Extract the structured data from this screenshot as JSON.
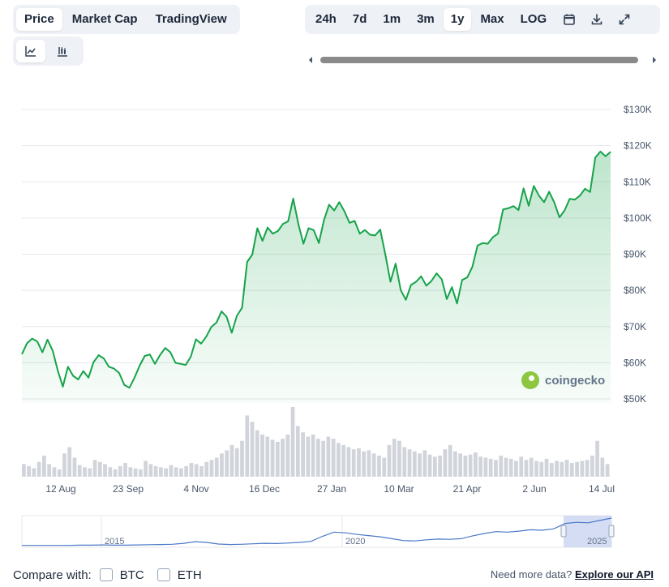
{
  "header": {
    "tabs": [
      {
        "label": "Price",
        "active": true
      },
      {
        "label": "Market Cap",
        "active": false
      },
      {
        "label": "TradingView",
        "active": false
      }
    ],
    "ranges": [
      {
        "label": "24h",
        "active": false
      },
      {
        "label": "7d",
        "active": false
      },
      {
        "label": "1m",
        "active": false
      },
      {
        "label": "3m",
        "active": false
      },
      {
        "label": "1y",
        "active": true
      },
      {
        "label": "Max",
        "active": false
      },
      {
        "label": "LOG",
        "active": false
      }
    ],
    "icons": [
      "calendar-icon",
      "download-icon",
      "fullscreen-icon"
    ],
    "chart_types": [
      "line-chart-icon",
      "candlestick-chart-icon"
    ]
  },
  "brand": {
    "watermark": "coingecko"
  },
  "colors": {
    "line": "#16a34a",
    "fill": "#16a34a",
    "grid": "#e5e7eb",
    "volume": "#d1d5db",
    "navigator_line": "#4a78c8",
    "navigator_fill": "#c9d4f0"
  },
  "chart_data": {
    "type": "area",
    "title": "",
    "xlabel": "",
    "ylabel": "",
    "ylim": [
      50000,
      130000
    ],
    "y_ticks": [
      50000,
      60000,
      70000,
      80000,
      90000,
      100000,
      110000,
      120000,
      130000
    ],
    "y_tick_labels": [
      "$50K",
      "$60K",
      "$70K",
      "$80K",
      "$90K",
      "$100K",
      "$110K",
      "$120K",
      "$130K"
    ],
    "x_ticks": [
      "12 Aug",
      "23 Sep",
      "4 Nov",
      "16 Dec",
      "27 Jan",
      "10 Mar",
      "21 Apr",
      "2 Jun",
      "14 Jul"
    ],
    "grid": true,
    "series": [
      {
        "values": [
          63500,
          66500,
          67800,
          67000,
          64000,
          67500,
          64500,
          59000,
          54500,
          60000,
          57500,
          56500,
          58800,
          57000,
          61300,
          63200,
          62300,
          60000,
          59500,
          58300,
          55000,
          54200,
          57000,
          60300,
          63000,
          63400,
          60800,
          63300,
          65200,
          64000,
          61100,
          60800,
          60500,
          62800,
          67600,
          66400,
          68300,
          71000,
          72200,
          75300,
          73800,
          69400,
          74100,
          76300,
          89000,
          91000,
          98300,
          94800,
          98500,
          96800,
          97500,
          99500,
          100200,
          106500,
          99500,
          94000,
          98300,
          97800,
          94200,
          100500,
          104800,
          103200,
          105500,
          103000,
          99800,
          100300,
          96800,
          97800,
          96500,
          96300,
          97900,
          91000,
          83500,
          88500,
          81200,
          78500,
          82600,
          83500,
          85000,
          82400,
          83700,
          85800,
          84200,
          78700,
          82000,
          77500,
          84000,
          84700,
          87600,
          93500,
          94200,
          94000,
          95800,
          96800,
          103500,
          103800,
          104400,
          103300,
          109300,
          104500,
          110000,
          107300,
          105500,
          108400,
          105400,
          101300,
          103200,
          106400,
          106200,
          107300,
          109200,
          108300,
          117800,
          119500,
          118200,
          119400
        ]
      }
    ],
    "volume": [
      12,
      10,
      8,
      14,
      20,
      12,
      9,
      7,
      22,
      28,
      18,
      11,
      9,
      8,
      16,
      14,
      12,
      9,
      7,
      10,
      13,
      9,
      8,
      7,
      15,
      12,
      10,
      9,
      8,
      11,
      9,
      8,
      10,
      13,
      12,
      10,
      14,
      16,
      18,
      22,
      25,
      30,
      27,
      34,
      58,
      52,
      44,
      40,
      38,
      35,
      33,
      36,
      40,
      66,
      48,
      42,
      38,
      40,
      36,
      34,
      38,
      36,
      32,
      30,
      28,
      26,
      27,
      24,
      25,
      22,
      20,
      18,
      30,
      36,
      34,
      28,
      26,
      24,
      22,
      25,
      21,
      19,
      20,
      26,
      30,
      24,
      22,
      20,
      21,
      23,
      19,
      18,
      17,
      16,
      20,
      18,
      17,
      15,
      19,
      16,
      18,
      15,
      14,
      17,
      13,
      15,
      14,
      16,
      13,
      14,
      15,
      16,
      20,
      34,
      18,
      12
    ]
  },
  "navigator": {
    "year_labels": [
      "2015",
      "2020",
      "2025"
    ],
    "values": [
      1,
      1,
      1,
      1,
      1,
      2,
      2,
      3,
      2,
      2,
      3,
      4,
      5,
      6,
      10,
      17,
      14,
      7,
      5,
      6,
      8,
      10,
      9,
      11,
      14,
      18,
      40,
      58,
      55,
      48,
      43,
      38,
      30,
      22,
      20,
      25,
      28,
      27,
      30,
      42,
      52,
      60,
      58,
      62,
      68,
      66,
      72,
      95,
      100,
      98,
      108,
      118
    ]
  },
  "footer": {
    "compare_label": "Compare with:",
    "options": [
      {
        "label": "BTC",
        "checked": false
      },
      {
        "label": "ETH",
        "checked": false
      }
    ],
    "api_prompt": "Need more data?",
    "api_link": "Explore our API"
  }
}
